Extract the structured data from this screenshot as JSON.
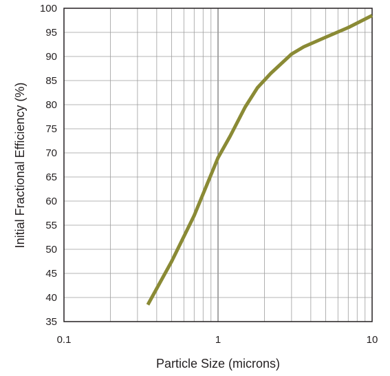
{
  "chart_data": {
    "type": "line",
    "title": "",
    "xlabel": "Particle Size (microns)",
    "ylabel": "Initial Fractional Efficiency (%)",
    "xscale": "log",
    "xlim": [
      0.1,
      10
    ],
    "ylim": [
      35,
      100
    ],
    "x_ticks": [
      0.1,
      1,
      10
    ],
    "x_tick_labels": [
      "0.1",
      "1",
      "10"
    ],
    "y_ticks": [
      35,
      40,
      45,
      50,
      55,
      60,
      65,
      70,
      75,
      80,
      85,
      90,
      95,
      100
    ],
    "y_tick_labels": [
      "35",
      "40",
      "45",
      "50",
      "55",
      "60",
      "65",
      "70",
      "75",
      "80",
      "85",
      "90",
      "95",
      "100"
    ],
    "grid": true,
    "legend": "none",
    "series": [
      {
        "color": "#8a8a35",
        "x": [
          0.35,
          0.5,
          0.7,
          1.0,
          1.2,
          1.5,
          1.8,
          2.2,
          3.0,
          3.6,
          5.0,
          7.0,
          10.0
        ],
        "y": [
          38.5,
          47.5,
          57.0,
          69.0,
          73.5,
          79.5,
          83.5,
          86.5,
          90.5,
          92.0,
          94.0,
          96.0,
          98.5
        ]
      }
    ]
  }
}
